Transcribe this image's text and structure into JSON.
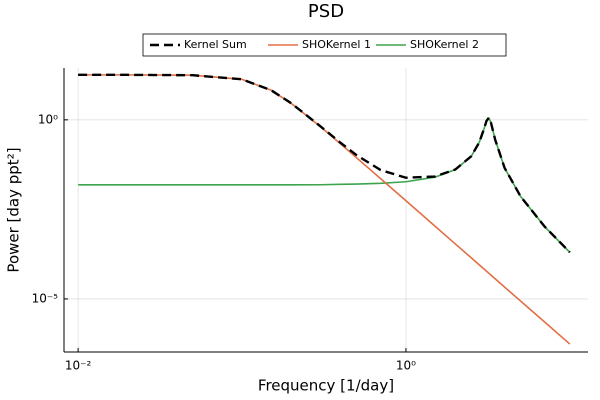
{
  "chart_data": {
    "type": "line",
    "title": "PSD",
    "x_label": "Frequency [1/day]",
    "y_label": "Power [day ppt²]",
    "x_scale": "log",
    "y_scale": "log",
    "grid": true,
    "legend": "top",
    "x": [
      0.01,
      0.02,
      0.05,
      0.1,
      0.15,
      0.2,
      0.3,
      0.4,
      0.5,
      0.7,
      1,
      1.5,
      2,
      2.5,
      2.8,
      3,
      3.1,
      3.2,
      3.3,
      3.5,
      4,
      5,
      7,
      10
    ],
    "series": [
      {
        "name": "Kernel Sum",
        "color": "#000000",
        "style": "dashed",
        "values": [
          18.02,
          18.02,
          17.62,
          13.52,
          6.77,
          2.885,
          0.667,
          0.227,
          0.103,
          0.0397,
          0.0242,
          0.0261,
          0.0411,
          0.0958,
          0.235,
          0.577,
          0.933,
          1.14,
          0.836,
          0.281,
          0.0453,
          0.00732,
          0.00106,
          0.0002
        ]
      },
      {
        "name": "SHOKernel 1",
        "color": "#e26f46",
        "style": "solid",
        "values": [
          18,
          18,
          17.6,
          13.5,
          6.75,
          2.87,
          0.652,
          0.211,
          0.087,
          0.0228,
          0.0055,
          0.001085,
          0.000343,
          0.000141,
          8.93e-05,
          6.78e-05,
          5.94e-05,
          5.23e-05,
          4.63e-05,
          3.66e-05,
          2.14e-05,
          8.78e-06,
          2.29e-06,
          5.5e-07
        ]
      },
      {
        "name": "SHOKernel 2",
        "color": "#3da44d",
        "style": "solid",
        "values": [
          0.0153,
          0.0153,
          0.0153,
          0.0153,
          0.0153,
          0.0153,
          0.0154,
          0.0158,
          0.0161,
          0.0169,
          0.0187,
          0.025,
          0.0408,
          0.0957,
          0.235,
          0.577,
          0.933,
          1.14,
          0.836,
          0.281,
          0.0453,
          0.00731,
          0.00106,
          0.000199
        ]
      }
    ],
    "xlim": [
      0.0082,
      12.9
    ],
    "ylim": [
      3.3e-07,
      28
    ],
    "xticks": [
      {
        "value": 0.01,
        "label": "10⁻²"
      },
      {
        "value": 1,
        "label": "10⁰"
      }
    ],
    "yticks": [
      {
        "value": 1e-05,
        "label": "10⁻⁵"
      },
      {
        "value": 1,
        "label": "10⁰"
      }
    ]
  }
}
